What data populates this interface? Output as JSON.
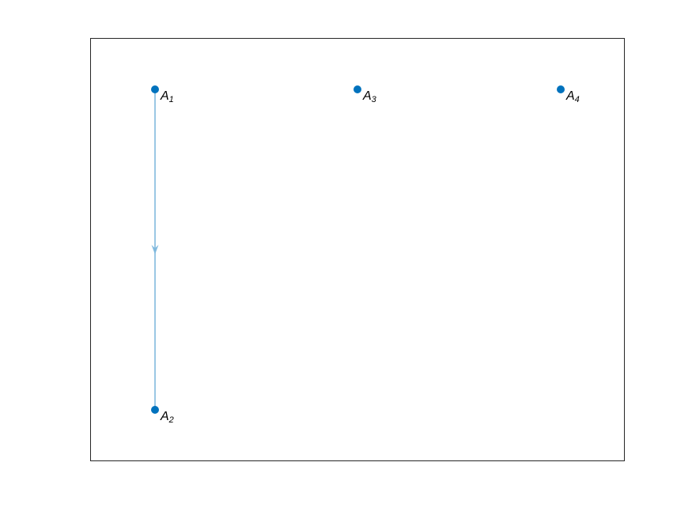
{
  "figure": {
    "background": "#ffffff",
    "axes_border_color": "#262626",
    "node_color": "#0072BD",
    "edge_color": "#80B9DE"
  },
  "graph": {
    "nodes": [
      {
        "id": "A1",
        "base": "A",
        "sub": "1"
      },
      {
        "id": "A2",
        "base": "A",
        "sub": "2"
      },
      {
        "id": "A3",
        "base": "A",
        "sub": "3"
      },
      {
        "id": "A4",
        "base": "A",
        "sub": "4"
      }
    ],
    "edges": [
      {
        "from": "A1",
        "to": "A2",
        "directed": true
      }
    ]
  }
}
